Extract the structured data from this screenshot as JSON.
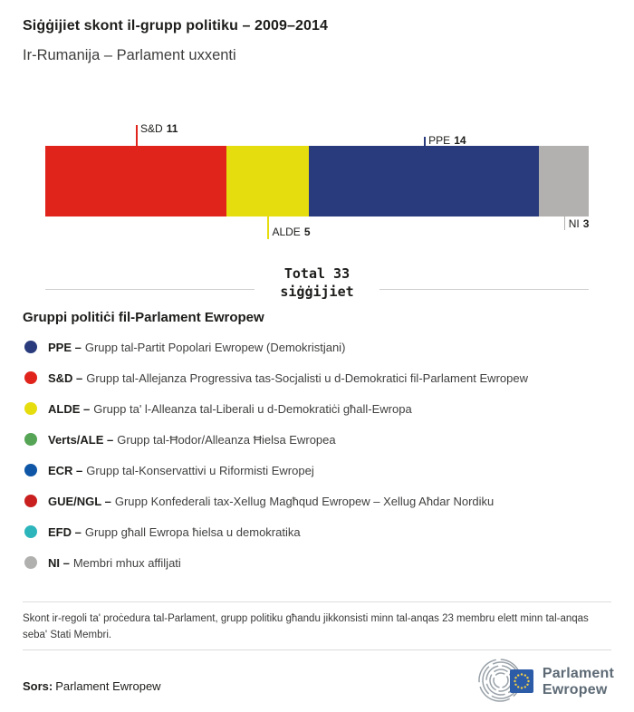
{
  "title": "Siġġijiet skont il-grupp politiku – 2009–2014",
  "subtitle": "Ir-Rumanija – Parlament uxxenti",
  "chart_data": {
    "type": "bar",
    "variant": "horizontal-stacked",
    "total": 33,
    "total_caption": {
      "line1": "Total 33",
      "line2": "siġġijiet"
    },
    "segments": [
      {
        "label": "S&D",
        "value": 11,
        "color": "#e0241c",
        "label_position": "above"
      },
      {
        "label": "ALDE",
        "value": 5,
        "color": "#e6dd0f",
        "label_position": "below"
      },
      {
        "label": "PPE",
        "value": 14,
        "color": "#293b7c",
        "label_position": "above"
      },
      {
        "label": "NI",
        "value": 3,
        "color": "#b3b1af",
        "label_position": "below"
      }
    ]
  },
  "legend": {
    "heading": "Gruppi politiċi fil-Parlament Ewropew",
    "items": [
      {
        "key": "PPE –",
        "description": "Grupp tal-Partit Popolari Ewropew (Demokristjani)",
        "color": "#293b7c"
      },
      {
        "key": "S&D –",
        "description": "Grupp tal-Allejanza Progressiva tas-Socjalisti u d-Demokratici fil-Parlament Ewropew",
        "color": "#e0241c"
      },
      {
        "key": "ALDE –",
        "description": "Grupp ta' l-Alleanza tal-Liberali u d-Demokratiċi għall-Ewropa",
        "color": "#e6dd0f"
      },
      {
        "key": "Verts/ALE –",
        "description": "Grupp tal-Ħodor/Alleanza Ħielsa Ewropea",
        "color": "#56a456"
      },
      {
        "key": "ECR –",
        "description": "Grupp tal-Konservattivi u Riformisti Ewropej",
        "color": "#0f57a6"
      },
      {
        "key": "GUE/NGL –",
        "description": "Grupp Konfederali tax-Xellug Magħqud Ewropew – Xellug Aħdar Nordiku",
        "color": "#c9201f"
      },
      {
        "key": "EFD –",
        "description": "Grupp għall Ewropa ħielsa u demokratika",
        "color": "#2db5bc"
      },
      {
        "key": "NI –",
        "description": "Membri mhux affiljati",
        "color": "#b0b0af"
      }
    ]
  },
  "footnote": "Skont ir-regoli ta' proċedura tal-Parlament, grupp politiku għandu jikkonsisti minn tal-anqas 23 membru elett minn tal-anqas seba' Stati Membri.",
  "source": {
    "label": "Sors:",
    "value": "Parlament Ewropew"
  },
  "logo": {
    "line1": "Parlament",
    "line2": "Ewropew"
  }
}
